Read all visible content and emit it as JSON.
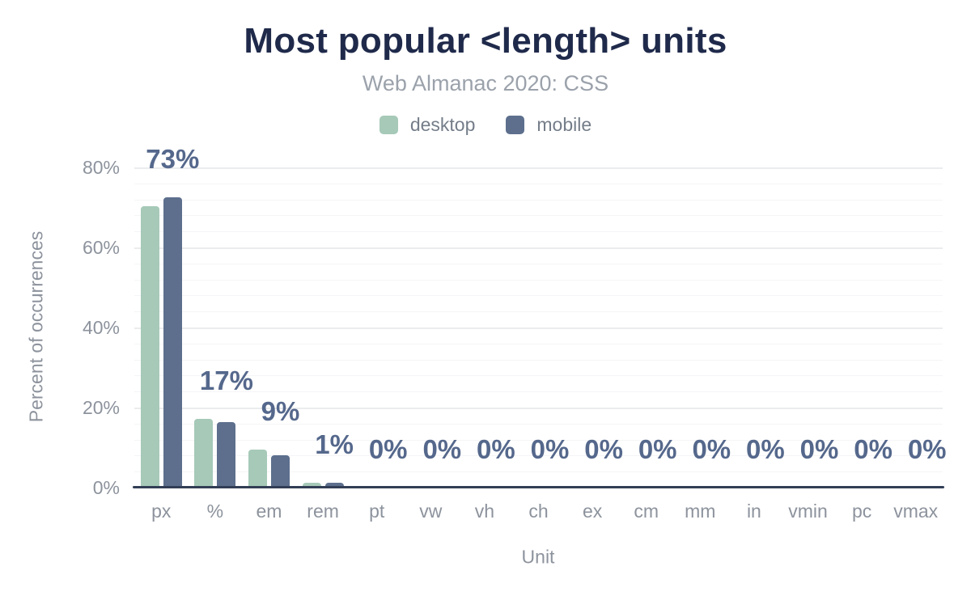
{
  "chart": {
    "title": "Most popular <length> units",
    "subtitle": "Web Almanac 2020: CSS"
  },
  "legend": {
    "items": [
      {
        "label": "desktop",
        "color": "#a6c9b8"
      },
      {
        "label": "mobile",
        "color": "#5d6f8d"
      }
    ]
  },
  "chart_data": {
    "type": "bar",
    "title": "Most popular <length> units",
    "subtitle": "Web Almanac 2020: CSS",
    "xlabel": "Unit",
    "ylabel": "Percent of occurrences",
    "ylim": [
      0,
      80
    ],
    "ytick_interval_major": 20,
    "ytick_interval_minor": 4,
    "ytick_labels": [
      "0%",
      "20%",
      "40%",
      "60%",
      "80%"
    ],
    "grid": "horizontal",
    "legend_position": "top",
    "categories": [
      "px",
      "%",
      "em",
      "rem",
      "pt",
      "vw",
      "vh",
      "ch",
      "ex",
      "cm",
      "mm",
      "in",
      "vmin",
      "pc",
      "vmax"
    ],
    "series": [
      {
        "name": "desktop",
        "color": "#a6c9b8",
        "values": [
          70.4,
          17.2,
          9.4,
          1.2,
          0,
          0,
          0,
          0,
          0,
          0,
          0,
          0,
          0,
          0,
          0
        ]
      },
      {
        "name": "mobile",
        "color": "#5d6f8d",
        "values": [
          72.6,
          16.4,
          8.1,
          1.2,
          0,
          0,
          0,
          0,
          0,
          0,
          0,
          0,
          0,
          0,
          0
        ]
      }
    ],
    "bar_labels": [
      "73%",
      "17%",
      "9%",
      "1%",
      "0%",
      "0%",
      "0%",
      "0%",
      "0%",
      "0%",
      "0%",
      "0%",
      "0%",
      "0%",
      " 0%"
    ]
  },
  "colors": {
    "background": "#ffffff",
    "title": "#1f2a4b",
    "subtitle": "#9ba2ab",
    "legend_text": "#747d89",
    "axis_text": "#8d939d",
    "data_label": "#55688c",
    "axis_line": "#323e55",
    "grid_major": "#ebecee",
    "grid_minor": "#f5f5f7"
  }
}
